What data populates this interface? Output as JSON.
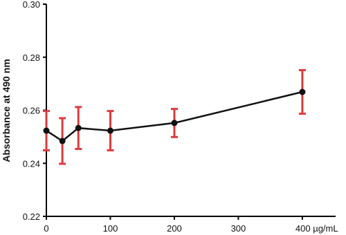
{
  "chart_data": {
    "type": "line",
    "y_label": "Absorbance at 490 nm",
    "x": [
      0,
      25,
      50,
      100,
      200,
      400
    ],
    "values": [
      0.2523,
      0.2484,
      0.2533,
      0.2523,
      0.2552,
      0.2669
    ],
    "errors": [
      0.0074,
      0.0086,
      0.0079,
      0.0074,
      0.0053,
      0.0082
    ],
    "color": "#111111",
    "error_color": "#e03a3a",
    "xlim": [
      0,
      452
    ],
    "xticks": [
      0,
      100,
      200,
      300,
      {
        "value": 400,
        "label": "400 µg/mL"
      }
    ],
    "ylim": [
      0.22,
      0.3
    ],
    "yticks": [
      0.22,
      0.24,
      0.26,
      0.28,
      {
        "value": 0.3,
        "label": "0.30"
      }
    ]
  }
}
